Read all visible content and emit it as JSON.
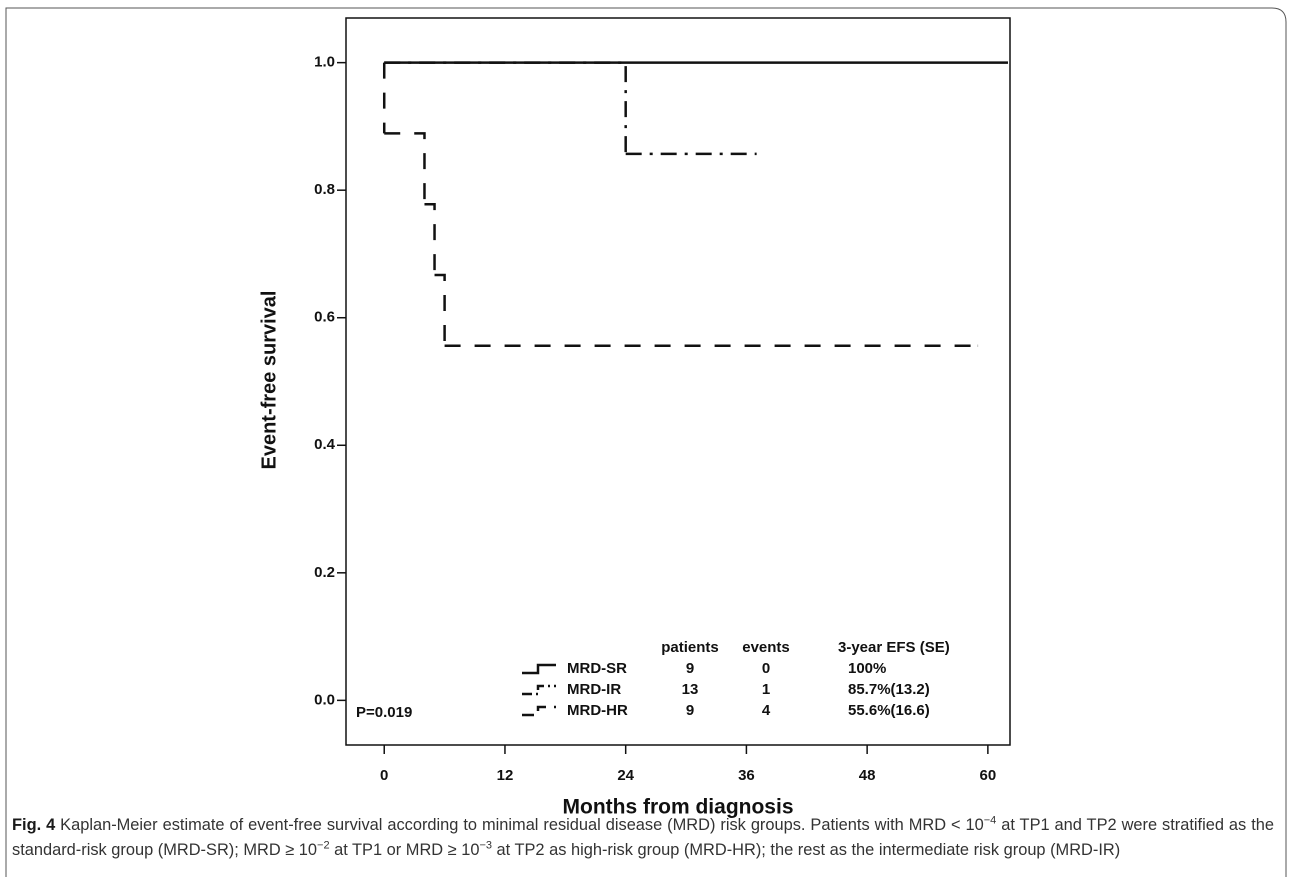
{
  "chart_data": {
    "type": "step",
    "y_label": "Event-free survival",
    "x_label": "Months from diagnosis",
    "annotation": "P=0.019",
    "xlim": [
      -3.8,
      62.2
    ],
    "ylim": [
      -0.07,
      1.07
    ],
    "xticks": [
      0,
      12,
      24,
      36,
      48,
      60
    ],
    "yticks": [
      {
        "value": 0,
        "label": "0.0"
      },
      {
        "value": 0.2,
        "label": "0.2"
      },
      {
        "value": 0.4,
        "label": "0.4"
      },
      {
        "value": 0.6,
        "label": "0.6"
      },
      {
        "value": 0.8,
        "label": "0.8"
      },
      {
        "value": 1,
        "label": "1.0"
      }
    ],
    "series": [
      {
        "name": "MRD-SR",
        "color": "#111111",
        "line_style": "solid",
        "x": [
          0,
          62
        ],
        "values": [
          1,
          1
        ]
      },
      {
        "name": "MRD-IR",
        "color": "#111111",
        "line_style": "dashdot",
        "x": [
          0,
          24,
          37
        ],
        "values": [
          1,
          0.857,
          0.857
        ]
      },
      {
        "name": "MRD-HR",
        "color": "#111111",
        "line_style": "dashed",
        "x": [
          0,
          0,
          4,
          5,
          6,
          59
        ],
        "values": [
          1,
          0.889,
          0.778,
          0.667,
          0.556,
          0.556
        ]
      }
    ],
    "legend_table": {
      "headers": [
        "patients",
        "events",
        "3-year EFS (SE)"
      ],
      "rows": [
        {
          "patients": 9,
          "events": 0,
          "efs": "100%"
        },
        {
          "patients": 13,
          "events": 1,
          "efs": "85.7%(13.2)"
        },
        {
          "patients": 9,
          "events": 4,
          "efs": "55.6%(16.6)"
        }
      ]
    }
  },
  "caption": {
    "label": "Fig. 4",
    "segments": [
      {
        "text": "Kaplan-Meier estimate of event-free survival according to minimal residual disease (MRD) risk groups. Patients with MRD < 10"
      },
      {
        "sup": "−4"
      },
      {
        "text": " at TP1 and TP2 were stratified as the standard-risk group (MRD-SR); MRD ≥ 10"
      },
      {
        "sup": "−2"
      },
      {
        "text": " at TP1 or MRD ≥ 10"
      },
      {
        "sup": "−3"
      },
      {
        "text": " at TP2 as high-risk group (MRD-HR); the rest as the intermediate risk group (MRD-IR)"
      }
    ]
  }
}
